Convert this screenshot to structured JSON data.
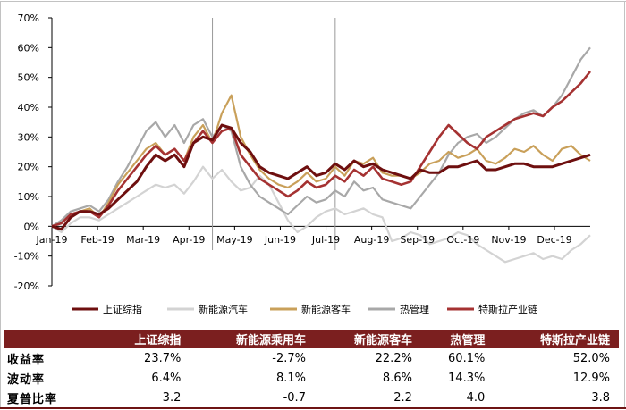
{
  "chart_data": {
    "type": "line",
    "x_labels": [
      "Jan-19",
      "Feb-19",
      "Mar-19",
      "Apr-19",
      "May-19",
      "Jun-19",
      "Jul-19",
      "Aug-19",
      "Sep-19",
      "Oct-19",
      "Nov-19",
      "Dec-19"
    ],
    "y_ticks": [
      "70%",
      "60%",
      "50%",
      "40%",
      "30%",
      "20%",
      "10%",
      "0%",
      "-10%",
      "-20%"
    ],
    "ylim": [
      -20,
      70
    ],
    "grid": false,
    "vertical_markers_week": [
      17,
      30
    ],
    "series": [
      {
        "name": "上证综指",
        "color": "#6e0f0f",
        "width": 3.0,
        "values": [
          0,
          -1,
          3,
          5,
          5,
          4,
          6,
          9,
          12,
          15,
          20,
          24,
          22,
          24,
          20,
          28,
          30,
          29,
          34,
          33,
          28,
          25,
          20,
          18,
          17,
          16,
          18,
          20,
          17,
          18,
          21,
          19,
          22,
          20,
          21,
          19,
          18,
          17,
          16,
          19,
          18,
          18,
          20,
          20,
          21,
          22,
          19,
          19,
          20,
          21,
          21,
          20,
          20,
          20,
          21,
          22,
          23,
          24
        ]
      },
      {
        "name": "新能源汽车",
        "color": "#d3d3d3",
        "width": 2.2,
        "values": [
          0,
          -2,
          1,
          3,
          3,
          2,
          4,
          6,
          8,
          10,
          12,
          14,
          13,
          14,
          11,
          15,
          20,
          16,
          19,
          15,
          12,
          13,
          17,
          14,
          8,
          2,
          -2,
          0,
          3,
          5,
          6,
          4,
          5,
          6,
          4,
          3,
          -5,
          -4,
          -2,
          -3,
          -6,
          -5,
          -4,
          -2,
          -3,
          -6,
          -8,
          -10,
          -12,
          -11,
          -10,
          -9,
          -11,
          -10,
          -11,
          -8,
          -6,
          -3
        ]
      },
      {
        "name": "新能源客车",
        "color": "#c9a05a",
        "width": 2.2,
        "values": [
          0,
          1,
          4,
          5,
          6,
          3,
          8,
          14,
          18,
          22,
          26,
          28,
          24,
          26,
          22,
          30,
          34,
          28,
          38,
          44,
          30,
          24,
          19,
          16,
          14,
          13,
          15,
          18,
          15,
          16,
          20,
          17,
          22,
          21,
          23,
          18,
          17,
          17,
          16,
          18,
          21,
          22,
          25,
          23,
          24,
          26,
          22,
          21,
          23,
          26,
          25,
          27,
          24,
          22,
          26,
          27,
          24,
          22
        ]
      },
      {
        "name": "热管理",
        "color": "#a8a8a8",
        "width": 2.2,
        "values": [
          0,
          2,
          5,
          6,
          7,
          5,
          9,
          15,
          20,
          26,
          32,
          35,
          30,
          34,
          28,
          34,
          36,
          30,
          34,
          32,
          20,
          14,
          10,
          8,
          6,
          4,
          7,
          10,
          8,
          9,
          12,
          10,
          15,
          12,
          13,
          9,
          8,
          7,
          6,
          10,
          14,
          18,
          24,
          28,
          30,
          31,
          28,
          30,
          33,
          36,
          38,
          39,
          37,
          40,
          44,
          50,
          56,
          60
        ]
      },
      {
        "name": "特斯拉产业链",
        "color": "#a53232",
        "width": 2.6,
        "values": [
          0,
          1,
          4,
          5,
          5,
          3,
          7,
          12,
          16,
          20,
          24,
          27,
          24,
          26,
          22,
          28,
          32,
          28,
          32,
          33,
          24,
          20,
          16,
          14,
          12,
          10,
          12,
          15,
          13,
          14,
          17,
          15,
          19,
          17,
          20,
          16,
          15,
          14,
          15,
          20,
          25,
          30,
          34,
          31,
          28,
          26,
          30,
          32,
          34,
          36,
          37,
          38,
          37,
          40,
          42,
          45,
          48,
          52
        ]
      }
    ]
  },
  "table": {
    "headers": [
      "",
      "上证综指",
      "新能源乘用车",
      "新能源客车",
      "热管理",
      "特斯拉产业链"
    ],
    "rows": [
      {
        "label": "收益率",
        "values": [
          "23.7%",
          "-2.7%",
          "22.2%",
          "60.1%",
          "52.0%"
        ]
      },
      {
        "label": "波动率",
        "values": [
          "6.4%",
          "8.1%",
          "8.6%",
          "14.3%",
          "12.9%"
        ]
      },
      {
        "label": "夏普比率",
        "values": [
          "3.2",
          "-0.7",
          "2.2",
          "4.0",
          "3.8"
        ]
      }
    ]
  }
}
